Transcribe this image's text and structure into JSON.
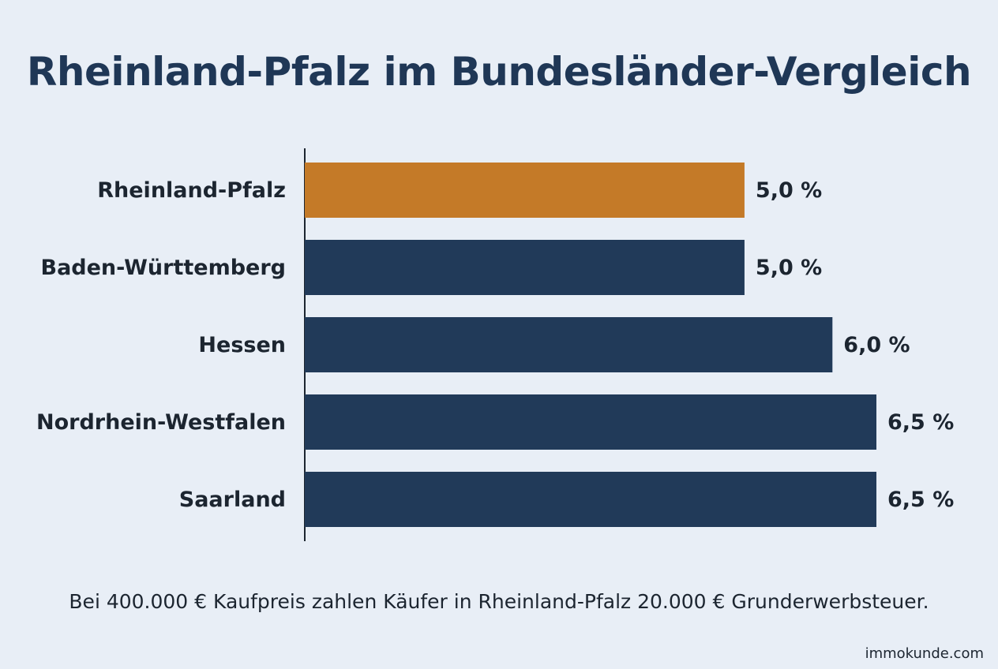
{
  "title": "Rheinland-Pfalz im Bundesländer-Vergleich",
  "chart_data": {
    "type": "bar",
    "orientation": "horizontal",
    "categories": [
      "Rheinland-Pfalz",
      "Baden-Württemberg",
      "Hessen",
      "Nordrhein-Westfalen",
      "Saarland"
    ],
    "values": [
      5.0,
      5.0,
      6.0,
      6.5,
      6.5
    ],
    "value_labels": [
      "5,0 %",
      "5,0 %",
      "6,0 %",
      "6,5 %",
      "6,5 %"
    ],
    "highlight_index": 0,
    "colors": {
      "highlight": "#c47a28",
      "default": "#213a59",
      "axis": "#1c2530",
      "text": "#1c2530"
    },
    "xlim": [
      0,
      6.5
    ],
    "grid": false,
    "legend": "none"
  },
  "footnote": "Bei 400.000 € Kaufpreis zahlen Käufer in Rheinland-Pfalz 20.000 € Grunderwerbsteuer.",
  "brand": "immokunde.com"
}
